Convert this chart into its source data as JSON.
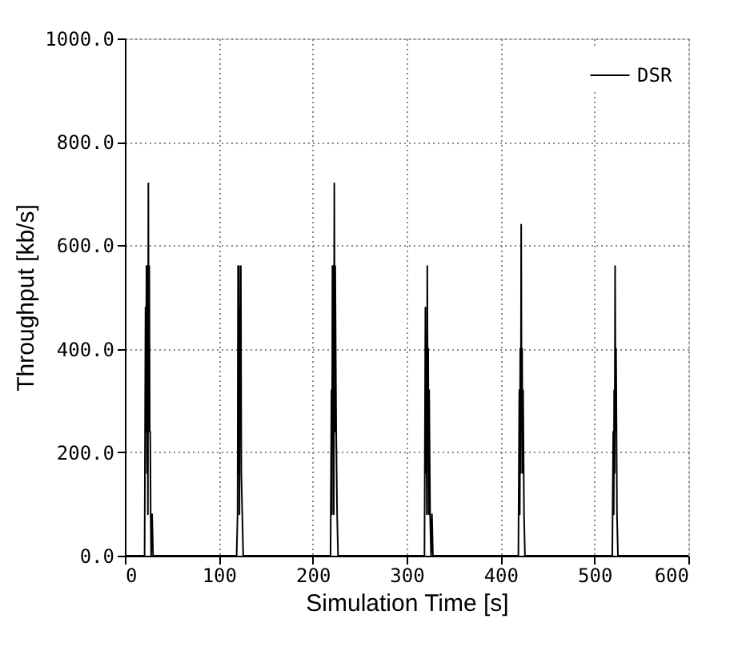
{
  "chart_data": {
    "type": "line",
    "xlabel": "Simulation Time [s]",
    "ylabel": "Throughput [kb/s]",
    "xlim": [
      0,
      600
    ],
    "xticks": [
      0,
      100,
      200,
      300,
      400,
      500,
      600
    ],
    "ylim": [
      0,
      1000
    ],
    "yticks": [
      {
        "value": 0,
        "label": "0.0"
      },
      {
        "value": 200,
        "label": "200.0"
      },
      {
        "value": 400,
        "label": "400.0"
      },
      {
        "value": 600,
        "label": "600.0"
      },
      {
        "value": 800,
        "label": "800.0"
      },
      {
        "value": 1000,
        "label": "1000.0"
      }
    ],
    "grid": true,
    "legend": "top right",
    "marker": "none",
    "line_style": "solid",
    "series": [
      {
        "name": "DSR",
        "color": "#000000",
        "x": [
          0,
          21,
          22,
          22.5,
          23,
          23.5,
          24,
          24.5,
          25,
          25.5,
          26,
          26.5,
          27,
          27.5,
          28,
          29,
          30,
          31,
          119,
          120,
          120.5,
          121,
          121.5,
          122,
          122.5,
          123,
          123.5,
          124,
          125,
          126,
          127,
          219,
          220,
          220.5,
          221,
          221.5,
          222,
          222.5,
          223,
          223.5,
          224,
          225,
          226,
          227,
          228,
          319,
          320,
          320.5,
          321,
          321.5,
          322,
          322.5,
          323,
          323.5,
          324,
          325,
          326,
          327,
          328,
          419,
          420,
          420.5,
          421,
          421.5,
          422,
          422.5,
          423,
          423.5,
          424,
          425,
          426,
          427,
          519,
          520,
          520.5,
          521,
          521.5,
          522,
          522.5,
          523,
          524,
          525,
          526,
          527,
          600
        ],
        "values": [
          0,
          0,
          480,
          240,
          560,
          160,
          560,
          80,
          720,
          240,
          560,
          240,
          240,
          80,
          0,
          80,
          0,
          0,
          0,
          80,
          560,
          160,
          560,
          80,
          480,
          240,
          560,
          160,
          80,
          0,
          0,
          0,
          320,
          80,
          560,
          240,
          560,
          80,
          720,
          240,
          560,
          240,
          80,
          0,
          0,
          0,
          480,
          160,
          400,
          80,
          560,
          240,
          400,
          80,
          320,
          80,
          0,
          80,
          0,
          0,
          320,
          80,
          400,
          160,
          640,
          240,
          400,
          160,
          320,
          80,
          0,
          0,
          0,
          240,
          80,
          320,
          160,
          560,
          240,
          400,
          80,
          0,
          0,
          0,
          0
        ]
      }
    ]
  }
}
